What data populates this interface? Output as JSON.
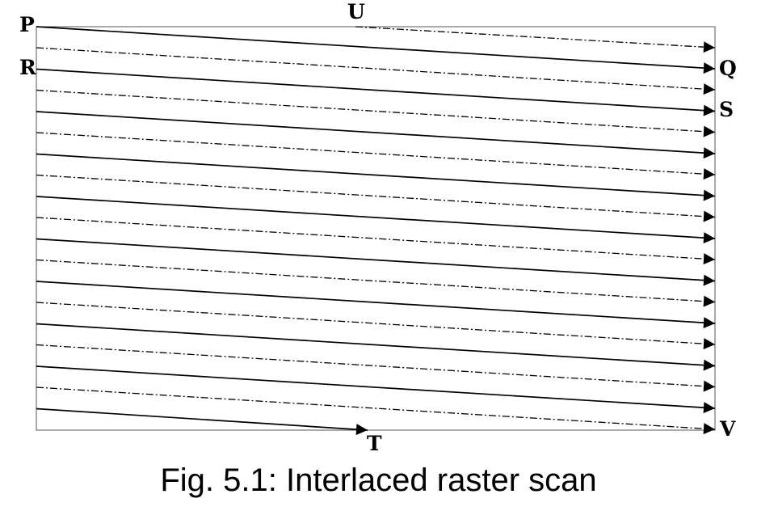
{
  "diagram": {
    "labels": {
      "P": "P",
      "Q": "Q",
      "R": "R",
      "S": "S",
      "T": "T",
      "U": "U",
      "V": "V"
    },
    "odd_field_line_count": 10,
    "even_field_line_count": 10,
    "odd_field_style": "solid",
    "even_field_style": "dash-dot",
    "line_color": "#000000"
  },
  "caption": "Fig. 5.1: Interlaced raster scan"
}
